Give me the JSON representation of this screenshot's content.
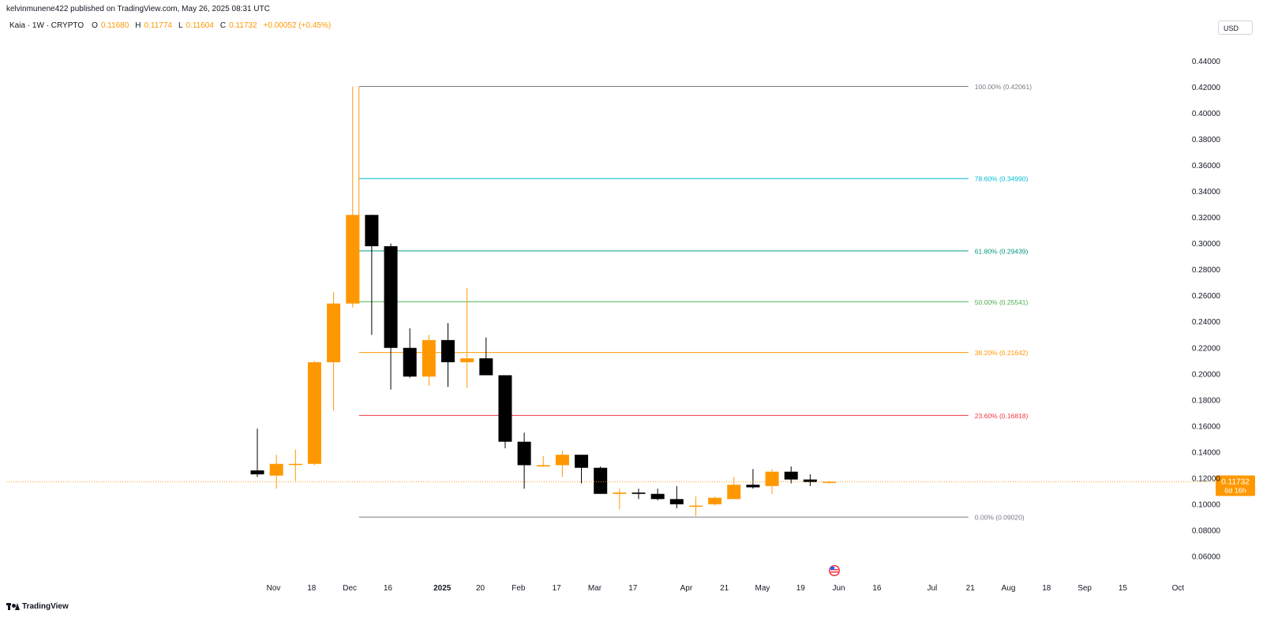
{
  "header": {
    "attribution": "kelvinmunene422 published on TradingView.com, May 26, 2025 08:31 UTC"
  },
  "legend": {
    "symbol": "Kaia · 1W · CRYPTO",
    "open_label": "O",
    "open": "0.11680",
    "high_label": "H",
    "high": "0.11774",
    "low_label": "L",
    "low": "0.11604",
    "close_label": "C",
    "close": "0.11732",
    "change": "+0.00052 (+0.45%)"
  },
  "currency_button": "USD",
  "price_tag": {
    "price": "0.11732",
    "countdown": "6d 16h"
  },
  "watermark": "TradingView",
  "colors": {
    "up": "#ff9800",
    "down": "#000000",
    "accent": "#ff9800",
    "grid": "#e0e3eb"
  },
  "chart_data": {
    "type": "candlestick",
    "timeframe": "1W",
    "current_price": 0.11732,
    "y_axis": {
      "ylim": [
        0.05,
        0.45
      ],
      "ticks": [
        "0.06000",
        "0.08000",
        "0.10000",
        "0.12000",
        "0.14000",
        "0.16000",
        "0.18000",
        "0.20000",
        "0.22000",
        "0.24000",
        "0.26000",
        "0.28000",
        "0.30000",
        "0.32000",
        "0.34000",
        "0.36000",
        "0.38000",
        "0.40000",
        "0.42000",
        "0.44000"
      ]
    },
    "x_axis": {
      "labels": [
        {
          "text": "Nov",
          "index": 0.85
        },
        {
          "text": "18",
          "index": 2.85
        },
        {
          "text": "Dec",
          "index": 4.85
        },
        {
          "text": "16",
          "index": 6.85
        },
        {
          "text": "2025",
          "index": 9.7
        },
        {
          "text": "20",
          "index": 11.7
        },
        {
          "text": "Feb",
          "index": 13.7
        },
        {
          "text": "17",
          "index": 15.7
        },
        {
          "text": "Mar",
          "index": 17.7
        },
        {
          "text": "17",
          "index": 19.7
        },
        {
          "text": "Apr",
          "index": 22.5
        },
        {
          "text": "21",
          "index": 24.5
        },
        {
          "text": "May",
          "index": 26.5
        },
        {
          "text": "19",
          "index": 28.5
        },
        {
          "text": "Jun",
          "index": 30.5
        },
        {
          "text": "16",
          "index": 32.5
        },
        {
          "text": "Jul",
          "index": 35.4
        },
        {
          "text": "21",
          "index": 37.4
        },
        {
          "text": "Aug",
          "index": 39.4
        },
        {
          "text": "18",
          "index": 41.4
        },
        {
          "text": "Sep",
          "index": 43.4
        },
        {
          "text": "15",
          "index": 45.4
        },
        {
          "text": "Oct",
          "index": 48.3
        }
      ]
    },
    "candles": [
      {
        "o": 0.126,
        "h": 0.158,
        "l": 0.121,
        "c": 0.123
      },
      {
        "o": 0.122,
        "h": 0.138,
        "l": 0.112,
        "c": 0.131
      },
      {
        "o": 0.131,
        "h": 0.142,
        "l": 0.118,
        "c": 0.131
      },
      {
        "o": 0.131,
        "h": 0.21,
        "l": 0.13,
        "c": 0.209
      },
      {
        "o": 0.209,
        "h": 0.263,
        "l": 0.172,
        "c": 0.254
      },
      {
        "o": 0.254,
        "h": 0.4206,
        "l": 0.251,
        "c": 0.322
      },
      {
        "o": 0.322,
        "h": 0.322,
        "l": 0.23,
        "c": 0.298
      },
      {
        "o": 0.298,
        "h": 0.3,
        "l": 0.188,
        "c": 0.22
      },
      {
        "o": 0.22,
        "h": 0.235,
        "l": 0.197,
        "c": 0.198
      },
      {
        "o": 0.198,
        "h": 0.23,
        "l": 0.191,
        "c": 0.226
      },
      {
        "o": 0.226,
        "h": 0.239,
        "l": 0.19,
        "c": 0.209
      },
      {
        "o": 0.209,
        "h": 0.266,
        "l": 0.189,
        "c": 0.212
      },
      {
        "o": 0.212,
        "h": 0.228,
        "l": 0.199,
        "c": 0.199
      },
      {
        "o": 0.199,
        "h": 0.199,
        "l": 0.143,
        "c": 0.148
      },
      {
        "o": 0.148,
        "h": 0.155,
        "l": 0.112,
        "c": 0.13
      },
      {
        "o": 0.129,
        "h": 0.137,
        "l": 0.129,
        "c": 0.13
      },
      {
        "o": 0.13,
        "h": 0.141,
        "l": 0.121,
        "c": 0.138
      },
      {
        "o": 0.138,
        "h": 0.138,
        "l": 0.116,
        "c": 0.128
      },
      {
        "o": 0.128,
        "h": 0.129,
        "l": 0.108,
        "c": 0.108
      },
      {
        "o": 0.108,
        "h": 0.112,
        "l": 0.096,
        "c": 0.109
      },
      {
        "o": 0.109,
        "h": 0.112,
        "l": 0.104,
        "c": 0.108
      },
      {
        "o": 0.108,
        "h": 0.112,
        "l": 0.103,
        "c": 0.104
      },
      {
        "o": 0.104,
        "h": 0.114,
        "l": 0.097,
        "c": 0.1
      },
      {
        "o": 0.099,
        "h": 0.106,
        "l": 0.091,
        "c": 0.099
      },
      {
        "o": 0.1,
        "h": 0.106,
        "l": 0.099,
        "c": 0.105
      },
      {
        "o": 0.104,
        "h": 0.121,
        "l": 0.104,
        "c": 0.115
      },
      {
        "o": 0.115,
        "h": 0.127,
        "l": 0.112,
        "c": 0.113
      },
      {
        "o": 0.114,
        "h": 0.127,
        "l": 0.108,
        "c": 0.125
      },
      {
        "o": 0.125,
        "h": 0.129,
        "l": 0.116,
        "c": 0.119
      },
      {
        "o": 0.119,
        "h": 0.123,
        "l": 0.114,
        "c": 0.117
      },
      {
        "o": 0.1168,
        "h": 0.11774,
        "l": 0.11604,
        "c": 0.11732
      }
    ],
    "fibonacci": {
      "start_index": 5,
      "end_index": 37.3,
      "levels": [
        {
          "label": "100.00% (0.42061)",
          "value": 0.42061,
          "color": "#787b86"
        },
        {
          "label": "78.60% (0.34990)",
          "value": 0.3499,
          "color": "#00bcd4"
        },
        {
          "label": "61.80% (0.29439)",
          "value": 0.29439,
          "color": "#089981"
        },
        {
          "label": "50.00% (0.25541)",
          "value": 0.25541,
          "color": "#4caf50"
        },
        {
          "label": "38.20% (0.21642)",
          "value": 0.21642,
          "color": "#ff9800"
        },
        {
          "label": "23.60% (0.16818)",
          "value": 0.16818,
          "color": "#f23645"
        },
        {
          "label": "0.00% (0.09020)",
          "value": 0.0902,
          "color": "#787b86"
        }
      ],
      "trend_line": {
        "index": 5,
        "from": 0.4206,
        "to": 0.254,
        "color": "#ff9800"
      }
    }
  }
}
